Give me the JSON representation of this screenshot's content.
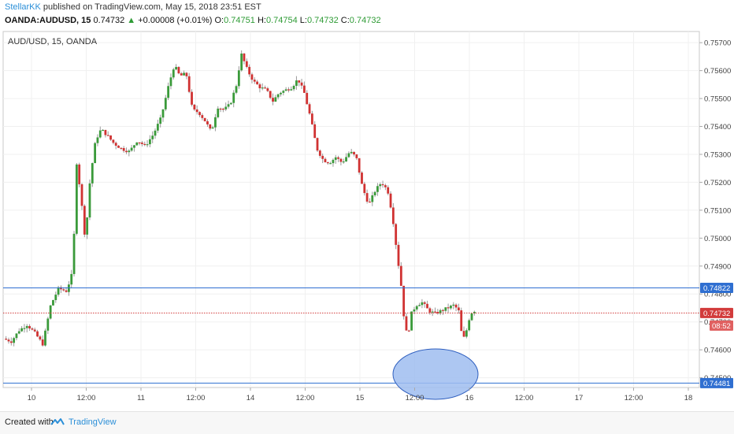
{
  "header": {
    "user": "StellarKK",
    "published": "published on TradingView.com, May 15, 2018 23:51 EST",
    "symbol": "OANDA:AUDUSD, 15",
    "last": "0.74732",
    "change": "+0.00008 (+0.01%)",
    "o_label": "O:",
    "o": "0.74751",
    "h_label": "H:",
    "h": "0.74754",
    "l_label": "L:",
    "l": "0.74732",
    "c_label": "C:",
    "c": "0.74732"
  },
  "chart_data": {
    "type": "candlestick",
    "title": "AUD/USD, 15, OANDA",
    "y_ticks": [
      "0.75700",
      "0.75600",
      "0.75500",
      "0.75400",
      "0.75300",
      "0.75200",
      "0.75100",
      "0.75000",
      "0.74900",
      "0.74800",
      "0.74700",
      "0.74600",
      "0.74500"
    ],
    "ylim": [
      0.74465,
      0.7574
    ],
    "x_ticks": [
      "10",
      "12:00",
      "11",
      "12:00",
      "14",
      "12:00",
      "15",
      "12:00",
      "16",
      "12:00",
      "17",
      "12:00",
      "18"
    ],
    "horizontal_lines": [
      {
        "value": 0.74822,
        "label": "0.74822",
        "color": "#2f6fd1",
        "style": "solid"
      },
      {
        "value": 0.74481,
        "label": "0.74481",
        "color": "#2f6fd1",
        "style": "solid"
      },
      {
        "value": 0.74732,
        "label": "0.74732",
        "color": "#d23b3b",
        "style": "dotted"
      }
    ],
    "countdown_label": "08:52",
    "colors": {
      "up": "#3a9a3a",
      "down": "#d03232",
      "level": "#2f6fd1",
      "highlight": "#9fbdf0",
      "wick": "#9a9a9a"
    },
    "price_path": [
      [
        0,
        0.7464
      ],
      [
        10,
        0.7463
      ],
      [
        20,
        0.7467
      ],
      [
        30,
        0.7469
      ],
      [
        40,
        0.7466
      ],
      [
        50,
        0.7462
      ],
      [
        60,
        0.7476
      ],
      [
        70,
        0.7482
      ],
      [
        80,
        0.7481
      ],
      [
        88,
        0.7488
      ],
      [
        93,
        0.7527
      ],
      [
        98,
        0.7516
      ],
      [
        104,
        0.7499
      ],
      [
        110,
        0.7521
      ],
      [
        117,
        0.7535
      ],
      [
        124,
        0.7539
      ],
      [
        131,
        0.7537
      ],
      [
        140,
        0.7534
      ],
      [
        150,
        0.7532
      ],
      [
        160,
        0.7531
      ],
      [
        170,
        0.7535
      ],
      [
        180,
        0.7533
      ],
      [
        190,
        0.7537
      ],
      [
        200,
        0.7543
      ],
      [
        210,
        0.7555
      ],
      [
        217,
        0.7562
      ],
      [
        224,
        0.7558
      ],
      [
        232,
        0.7559
      ],
      [
        240,
        0.7546
      ],
      [
        248,
        0.7545
      ],
      [
        256,
        0.7542
      ],
      [
        264,
        0.7538
      ],
      [
        272,
        0.7547
      ],
      [
        280,
        0.7546
      ],
      [
        288,
        0.7548
      ],
      [
        296,
        0.7555
      ],
      [
        302,
        0.7566
      ],
      [
        310,
        0.756
      ],
      [
        318,
        0.7556
      ],
      [
        326,
        0.7554
      ],
      [
        334,
        0.7553
      ],
      [
        342,
        0.7549
      ],
      [
        350,
        0.7552
      ],
      [
        358,
        0.7553
      ],
      [
        366,
        0.7554
      ],
      [
        374,
        0.7557
      ],
      [
        382,
        0.7552
      ],
      [
        390,
        0.7543
      ],
      [
        398,
        0.7532
      ],
      [
        406,
        0.7528
      ],
      [
        414,
        0.7527
      ],
      [
        422,
        0.7529
      ],
      [
        430,
        0.7527
      ],
      [
        440,
        0.7531
      ],
      [
        448,
        0.7529
      ],
      [
        456,
        0.7518
      ],
      [
        464,
        0.7512
      ],
      [
        472,
        0.7517
      ],
      [
        480,
        0.752
      ],
      [
        488,
        0.7517
      ],
      [
        494,
        0.7508
      ],
      [
        500,
        0.7494
      ],
      [
        505,
        0.7483
      ],
      [
        508,
        0.7473
      ],
      [
        513,
        0.7464
      ],
      [
        518,
        0.7473
      ],
      [
        524,
        0.7476
      ],
      [
        532,
        0.7477
      ],
      [
        540,
        0.7474
      ],
      [
        548,
        0.7473
      ],
      [
        556,
        0.7474
      ],
      [
        564,
        0.7475
      ],
      [
        572,
        0.7476
      ],
      [
        578,
        0.7474
      ],
      [
        583,
        0.7463
      ],
      [
        588,
        0.7467
      ],
      [
        593,
        0.7473
      ],
      [
        598,
        0.7474
      ]
    ]
  },
  "footer": {
    "created": "Created with",
    "brand": "TradingView"
  }
}
